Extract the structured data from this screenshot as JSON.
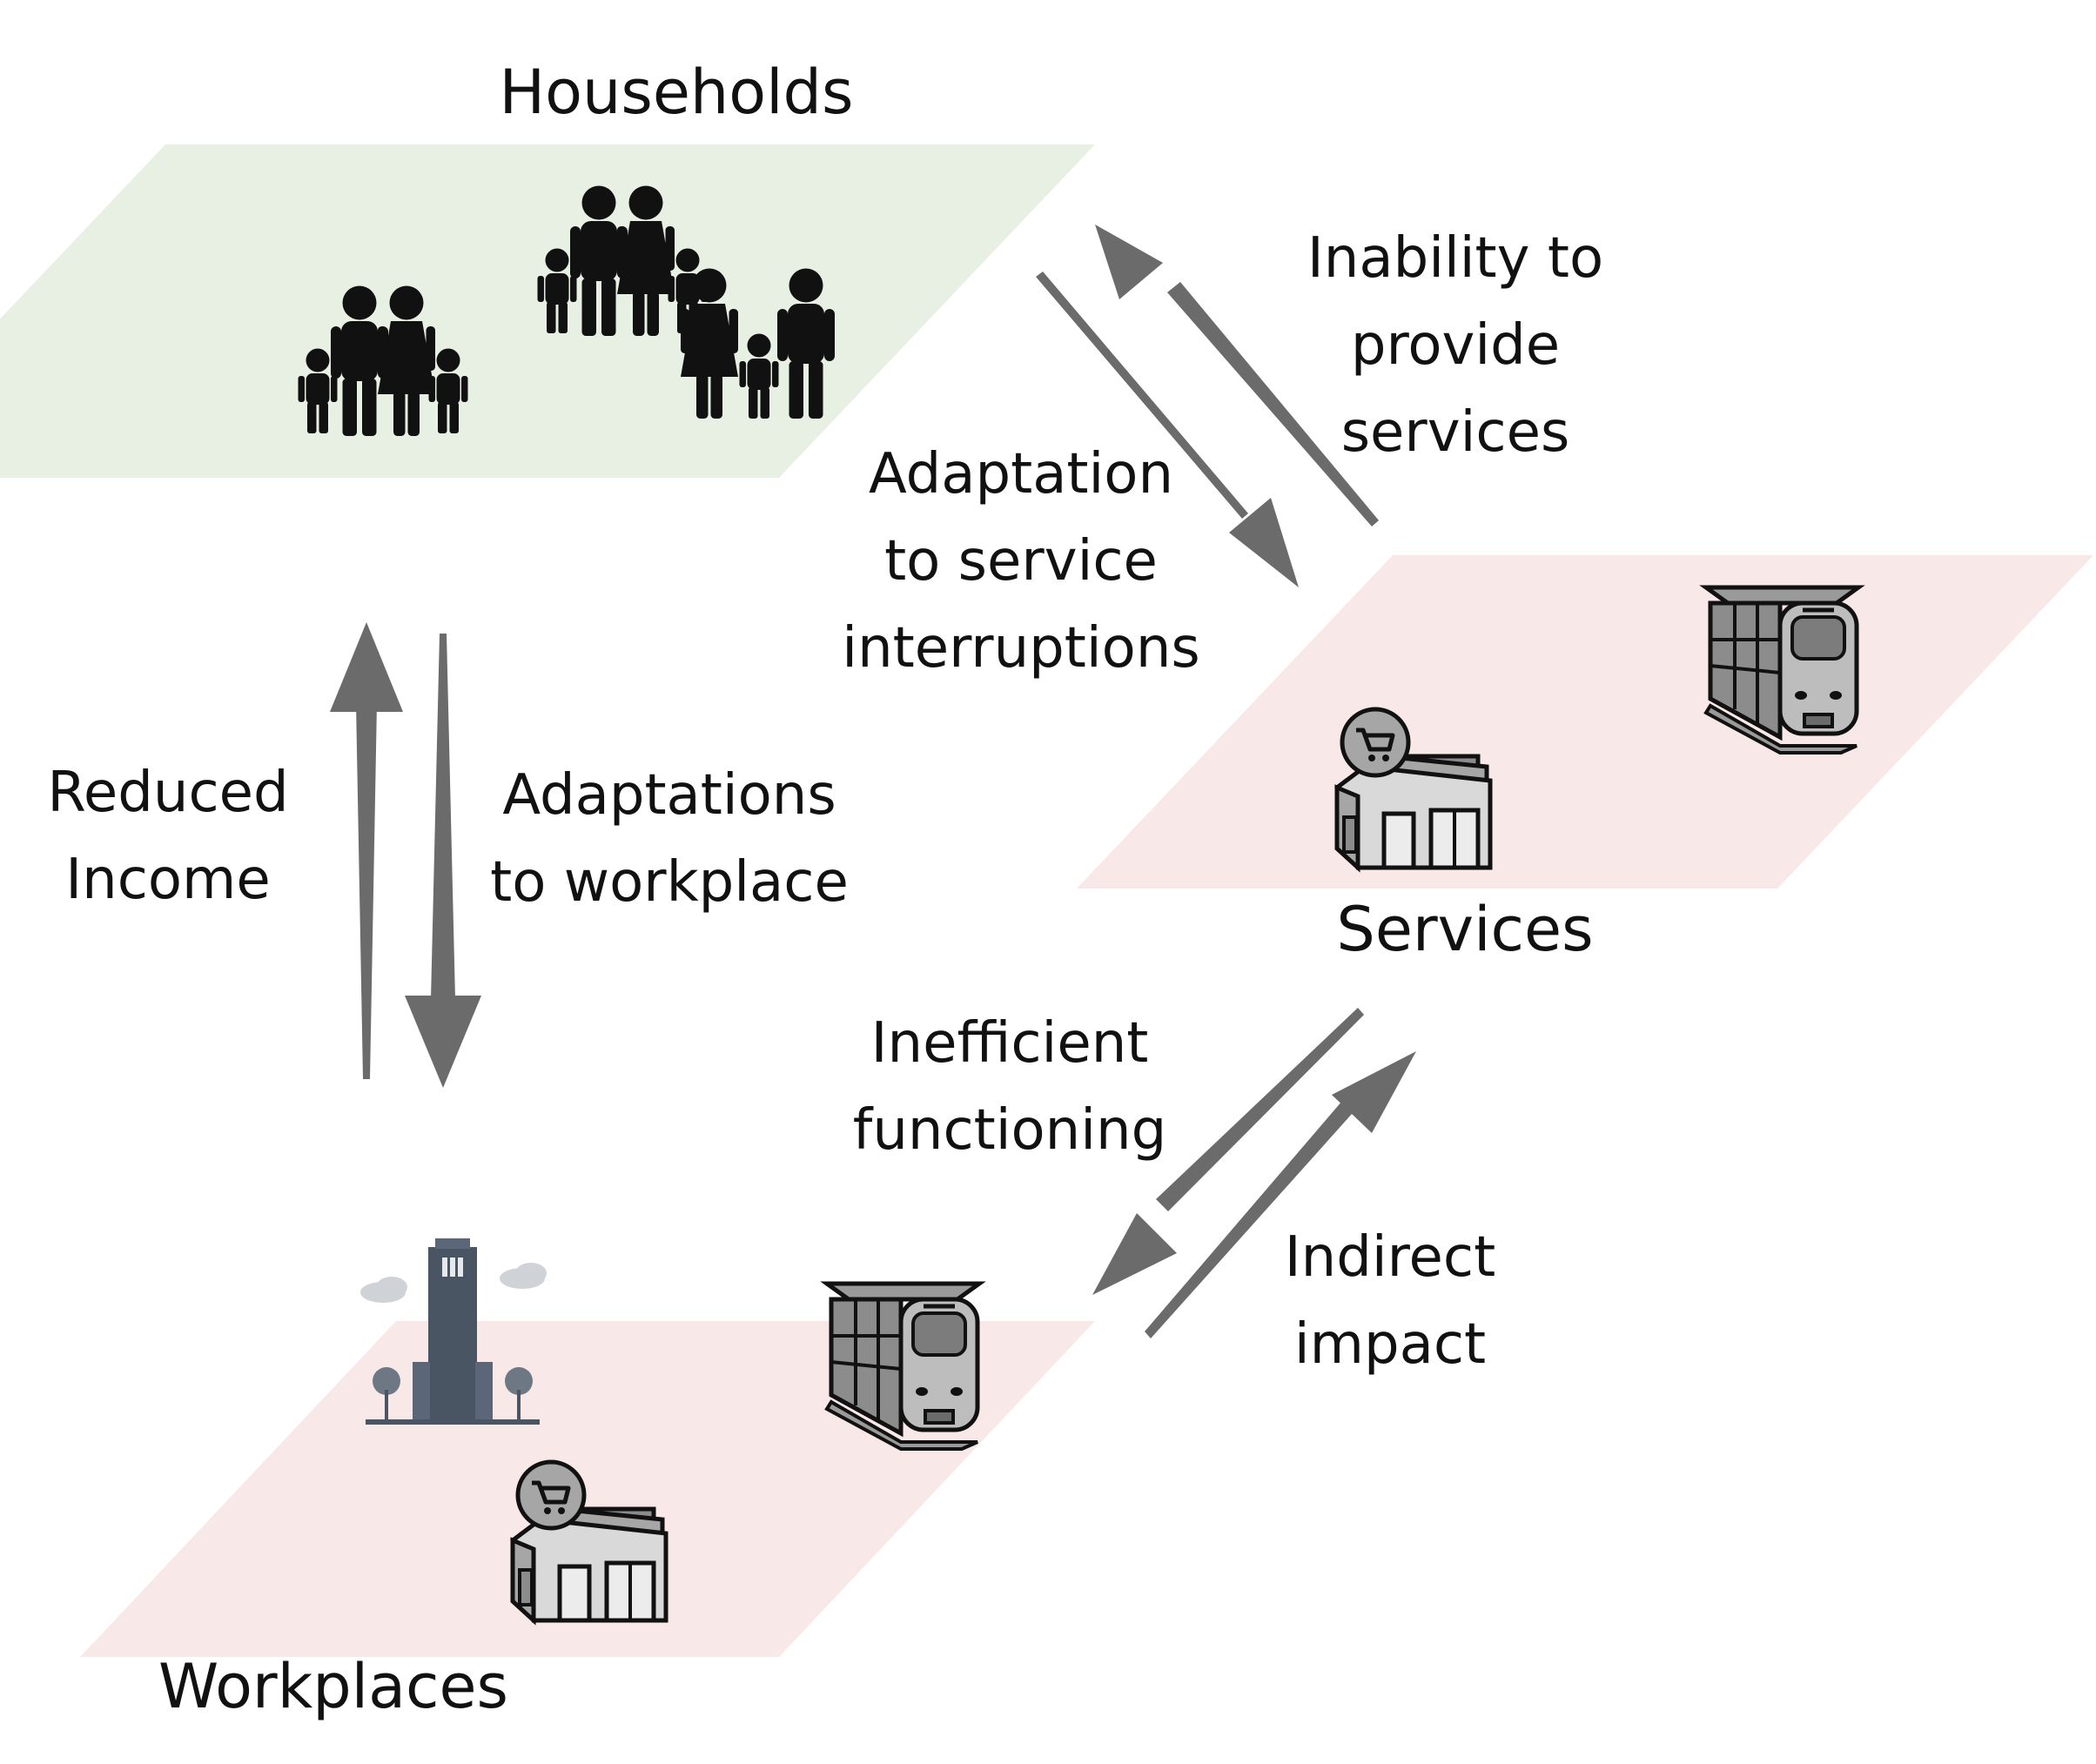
{
  "layers": {
    "households": "Households",
    "services": "Services",
    "workplaces": "Workplaces"
  },
  "edges": {
    "inability": [
      "Inability to",
      "provide",
      "services"
    ],
    "adaptation_service": [
      "Adaptation",
      "to service",
      "interruptions"
    ],
    "reduced_income": [
      "Reduced",
      "Income"
    ],
    "adaptations_workplace": [
      "Adaptations",
      "to workplace"
    ],
    "inefficient": [
      "Inefficient",
      "functioning"
    ],
    "indirect": [
      "Indirect",
      "impact"
    ]
  },
  "icons": {
    "family_1": "family-icon",
    "family_2": "family-icon",
    "family_3": "family-icon",
    "train_services": "train-icon",
    "store_services": "shop-icon",
    "office_workplaces": "office-building-icon",
    "train_workplaces": "train-icon",
    "store_workplaces": "shop-icon",
    "arrow": "arrow-icon"
  },
  "colors": {
    "households_plane": "#e8f0e4",
    "services_plane": "#f8e8e8",
    "workplaces_plane": "#f8e8e8",
    "arrow": "#6b6b6b",
    "text": "#111111"
  }
}
